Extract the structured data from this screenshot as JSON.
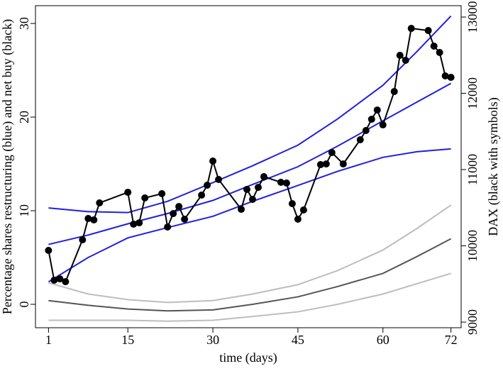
{
  "chart_data": {
    "type": "line",
    "x_label": "time (days)",
    "y_label": "Percentage shares restructuring (blue) and net buy (black)",
    "y2_label": "DAX (black with symbols)",
    "xlim": [
      -1.3,
      73.8
    ],
    "xticks": [
      1,
      15,
      30,
      45,
      60,
      72
    ],
    "ylim": [
      -2.5,
      31.9
    ],
    "yticks": [
      0,
      10,
      20,
      30
    ],
    "y2lim": [
      8926,
      13149
    ],
    "y2ticks": [
      9000,
      10000,
      11000,
      12000,
      13000
    ],
    "x": [
      1,
      8,
      15,
      22,
      30,
      37,
      45,
      52,
      60,
      66,
      72
    ],
    "series": [
      {
        "color": "#1f1fe0",
        "values": [
          10.3,
          9.9,
          9.8,
          11.0,
          13.0,
          14.8,
          17.0,
          19.8,
          23.4,
          27.0,
          30.8
        ]
      },
      {
        "color": "#1f1fe0",
        "values": [
          6.4,
          7.4,
          8.6,
          9.7,
          11.1,
          12.8,
          14.7,
          16.9,
          19.6,
          21.6,
          23.6
        ]
      },
      {
        "color": "#1f1fe0",
        "values": [
          2.4,
          5.0,
          7.1,
          8.2,
          9.4,
          11.0,
          12.7,
          14.2,
          15.7,
          16.3,
          16.6
        ]
      },
      {
        "color": "#bdbdbd",
        "values": [
          2.3,
          1.1,
          0.5,
          0.2,
          0.4,
          1.1,
          2.1,
          3.6,
          5.8,
          8.1,
          10.6
        ]
      },
      {
        "color": "#555555",
        "values": [
          0.4,
          -0.1,
          -0.5,
          -0.7,
          -0.6,
          0.0,
          0.8,
          1.9,
          3.3,
          5.1,
          7.0
        ]
      },
      {
        "color": "#bdbdbd",
        "values": [
          -1.7,
          -1.7,
          -1.7,
          -1.8,
          -1.7,
          -1.3,
          -0.8,
          0.0,
          1.1,
          2.2,
          3.3
        ]
      },
      {
        "color": "#000000",
        "axis": "y2",
        "markers": true,
        "x": [
          1,
          2,
          3,
          4,
          7,
          8,
          9,
          10,
          15,
          16,
          17,
          18,
          21,
          22,
          23,
          24,
          25,
          28,
          29,
          30,
          31,
          35,
          36,
          37,
          38,
          39,
          42,
          43,
          44,
          45,
          46,
          49,
          50,
          51,
          53,
          56,
          57,
          58,
          59,
          60,
          62,
          63,
          64,
          65,
          68,
          69,
          70,
          71,
          72
        ],
        "values": [
          9940,
          9549,
          9567,
          9530,
          10079,
          10358,
          10340,
          10563,
          10702,
          10284,
          10302,
          10628,
          10684,
          10247,
          10423,
          10516,
          10349,
          10665,
          10795,
          11112,
          10870,
          10479,
          10740,
          10609,
          10767,
          10907,
          10833,
          10823,
          10553,
          10349,
          10470,
          11065,
          11074,
          11223,
          11074,
          11391,
          11512,
          11660,
          11781,
          11586,
          12023,
          12498,
          12433,
          12851,
          12823,
          12619,
          12535,
          12228,
          12209
        ]
      }
    ]
  }
}
